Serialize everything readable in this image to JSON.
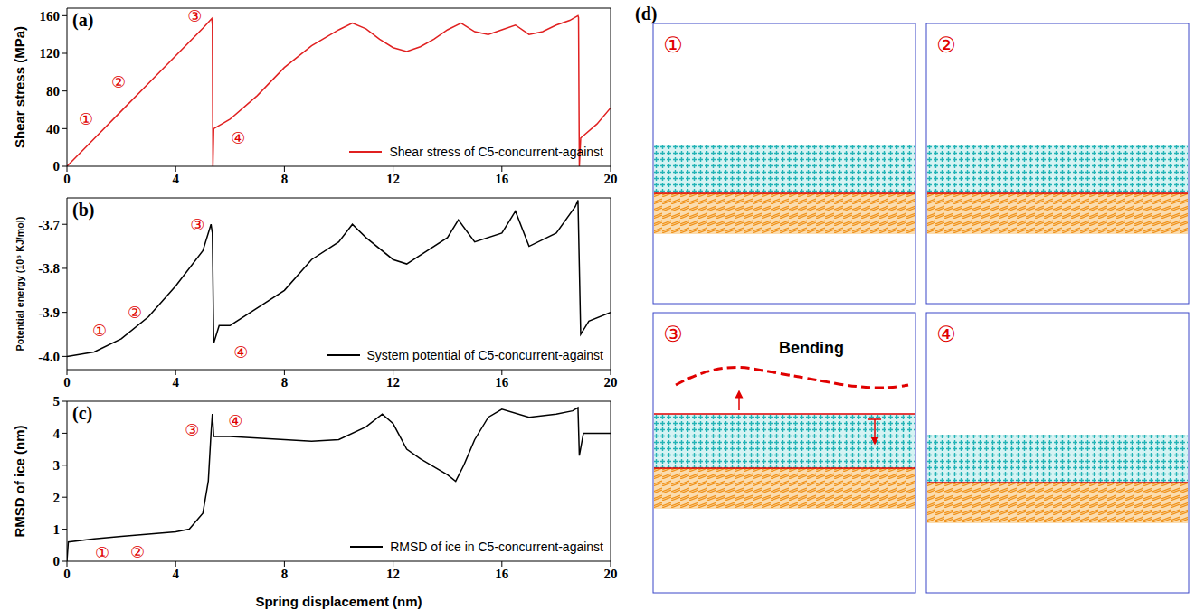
{
  "chart_data": [
    {
      "type": "line",
      "panel": "(a)",
      "y_label": "Shear stress (MPa)",
      "legend": "bottom-right",
      "grid": false,
      "x": [
        0,
        1,
        2,
        3,
        4,
        5,
        5.33,
        5.35,
        5.37,
        5.4,
        6,
        7,
        8,
        9,
        10,
        10.5,
        11,
        11.5,
        12,
        12.5,
        13,
        13.5,
        14,
        14.5,
        15,
        15.5,
        16,
        16.5,
        17,
        17.5,
        18,
        18.5,
        18.8,
        18.82,
        18.85,
        18.9,
        19.5,
        20
      ],
      "series": [
        {
          "name": "Shear stress of C5-concurrent-against",
          "color": "#e02020",
          "values": [
            0,
            29.3,
            58.7,
            88,
            117.4,
            146.7,
            157,
            150,
            0,
            40,
            50,
            75,
            105,
            128,
            145,
            152,
            146,
            135,
            126,
            122,
            127,
            135,
            145,
            152,
            143,
            140,
            145,
            150,
            140,
            143,
            150,
            155,
            160,
            158,
            0,
            30,
            45,
            62
          ]
        }
      ],
      "xlim": [
        0,
        20
      ],
      "xticks": [
        0,
        4,
        8,
        12,
        16,
        20
      ],
      "ylim": [
        0,
        168
      ],
      "yticks": [
        0,
        40,
        80,
        120,
        160
      ],
      "annotations": [
        {
          "text": "①",
          "x": 0.7,
          "y": 50
        },
        {
          "text": "②",
          "x": 1.9,
          "y": 90
        },
        {
          "text": "③",
          "x": 4.7,
          "y": 160
        },
        {
          "text": "④",
          "x": 6.3,
          "y": 30
        }
      ]
    },
    {
      "type": "line",
      "panel": "(b)",
      "y_label": "Potential energy (10⁵ KJ/mol)",
      "legend": "bottom-right",
      "grid": false,
      "x": [
        0,
        1,
        2,
        3,
        4,
        5,
        5.3,
        5.35,
        5.4,
        5.6,
        6,
        7,
        8,
        9,
        10,
        10.5,
        11,
        12,
        12.5,
        13,
        14,
        14.4,
        15,
        16,
        16.5,
        17,
        18,
        18.7,
        18.8,
        18.9,
        19.2,
        20
      ],
      "series": [
        {
          "name": "System potential of C5-concurrent-against",
          "color": "#000000",
          "values": [
            -4.0,
            -3.99,
            -3.96,
            -3.91,
            -3.84,
            -3.76,
            -3.7,
            -3.72,
            -3.97,
            -3.93,
            -3.93,
            -3.89,
            -3.85,
            -3.78,
            -3.74,
            -3.7,
            -3.73,
            -3.78,
            -3.79,
            -3.77,
            -3.73,
            -3.69,
            -3.74,
            -3.72,
            -3.67,
            -3.75,
            -3.72,
            -3.66,
            -3.645,
            -3.95,
            -3.92,
            -3.9
          ]
        }
      ],
      "xlim": [
        0,
        20
      ],
      "xticks": [
        0,
        4,
        8,
        12,
        16,
        20
      ],
      "ylim": [
        -4.03,
        -3.64
      ],
      "yticks": [
        {
          "value": -4,
          "label": "-4.0"
        },
        {
          "value": -3.9,
          "label": "-3.9"
        },
        {
          "value": -3.8,
          "label": "-3.8"
        },
        {
          "value": -3.7,
          "label": "-3.7"
        }
      ],
      "annotations": [
        {
          "text": "①",
          "x": 1.2,
          "y": -3.94
        },
        {
          "text": "②",
          "x": 2.5,
          "y": -3.9
        },
        {
          "text": "③",
          "x": 4.8,
          "y": -3.7
        },
        {
          "text": "④",
          "x": 6.4,
          "y": -3.99
        }
      ]
    },
    {
      "type": "line",
      "panel": "(c)",
      "y_label": "RMSD of ice (nm)",
      "x_label": "Spring displacement (nm)",
      "legend": "bottom-right",
      "grid": false,
      "x": [
        0,
        0.05,
        1,
        2,
        3,
        4,
        4.5,
        5,
        5.2,
        5.3,
        5.35,
        5.4,
        6,
        7,
        8,
        9,
        10,
        11,
        11.6,
        12,
        12.5,
        13,
        14,
        14.3,
        14.6,
        15,
        15.5,
        16,
        17,
        18,
        18.6,
        18.8,
        18.85,
        19,
        20
      ],
      "series": [
        {
          "name": "RMSD of ice in C5-concurrent-against",
          "color": "#000000",
          "values": [
            0,
            0.6,
            0.7,
            0.78,
            0.85,
            0.92,
            1.0,
            1.5,
            2.5,
            4.0,
            4.6,
            3.9,
            3.9,
            3.85,
            3.8,
            3.75,
            3.8,
            4.2,
            4.6,
            4.3,
            3.5,
            3.2,
            2.7,
            2.5,
            3.0,
            3.8,
            4.5,
            4.75,
            4.5,
            4.6,
            4.7,
            4.8,
            3.3,
            4.0,
            4.0
          ]
        }
      ],
      "xlim": [
        0,
        20
      ],
      "xticks": [
        0,
        4,
        8,
        12,
        16,
        20
      ],
      "ylim": [
        0,
        5
      ],
      "yticks": [
        0,
        1,
        2,
        3,
        4,
        5
      ],
      "annotations": [
        {
          "text": "①",
          "x": 1.3,
          "y": 0.28
        },
        {
          "text": "②",
          "x": 2.6,
          "y": 0.3
        },
        {
          "text": "③",
          "x": 4.6,
          "y": 4.1
        },
        {
          "text": "④",
          "x": 6.2,
          "y": 4.4
        }
      ]
    }
  ],
  "diagram": {
    "label": "(d)",
    "snapshots": [
      {
        "label": "①"
      },
      {
        "label": "②"
      },
      {
        "label": "③",
        "annotation": "Bending"
      },
      {
        "label": "④"
      }
    ]
  }
}
